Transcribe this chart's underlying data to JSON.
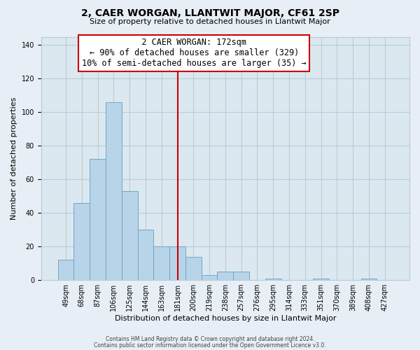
{
  "title": "2, CAER WORGAN, LLANTWIT MAJOR, CF61 2SP",
  "subtitle": "Size of property relative to detached houses in Llantwit Major",
  "xlabel": "Distribution of detached houses by size in Llantwit Major",
  "ylabel": "Number of detached properties",
  "bar_color": "#b8d4e8",
  "bar_edge_color": "#6fa8c8",
  "bin_labels": [
    "49sqm",
    "68sqm",
    "87sqm",
    "106sqm",
    "125sqm",
    "144sqm",
    "163sqm",
    "181sqm",
    "200sqm",
    "219sqm",
    "238sqm",
    "257sqm",
    "276sqm",
    "295sqm",
    "314sqm",
    "333sqm",
    "351sqm",
    "370sqm",
    "389sqm",
    "408sqm",
    "427sqm"
  ],
  "bar_heights": [
    12,
    46,
    72,
    106,
    53,
    30,
    20,
    20,
    14,
    3,
    5,
    5,
    0,
    1,
    0,
    0,
    1,
    0,
    0,
    1,
    0
  ],
  "vline_color": "#cc0000",
  "vline_pos": 7.5,
  "ylim": [
    0,
    145
  ],
  "yticks": [
    0,
    20,
    40,
    60,
    80,
    100,
    120,
    140
  ],
  "annotation_title": "2 CAER WORGAN: 172sqm",
  "annotation_line1": "← 90% of detached houses are smaller (329)",
  "annotation_line2": "10% of semi-detached houses are larger (35) →",
  "annotation_box_color": "#ffffff",
  "annotation_box_edge": "#cc0000",
  "footer1": "Contains HM Land Registry data © Crown copyright and database right 2024.",
  "footer2": "Contains public sector information licensed under the Open Government Licence v3.0.",
  "background_color": "#e8eef5",
  "plot_background": "#dce8f0",
  "grid_color": "#b8ccd8",
  "title_fontsize": 10,
  "subtitle_fontsize": 8,
  "axis_label_fontsize": 8,
  "tick_fontsize": 7
}
